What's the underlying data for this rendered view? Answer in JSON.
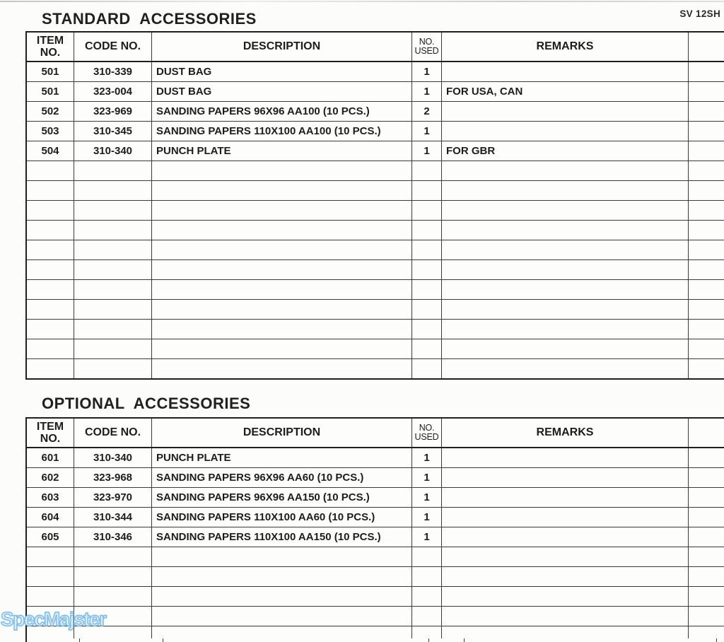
{
  "page": {
    "model_label": "SV 12SH",
    "watermark": "SpecMajster"
  },
  "tables": [
    {
      "id": "standard",
      "title": "STANDARD  ACCESSORIES",
      "columns": [
        {
          "key": "item",
          "label": "ITEM\nNO."
        },
        {
          "key": "code",
          "label": "CODE NO."
        },
        {
          "key": "description",
          "label": "DESCRIPTION"
        },
        {
          "key": "used",
          "label": "NO.\nUSED"
        },
        {
          "key": "remarks",
          "label": "REMARKS"
        },
        {
          "key": "extra",
          "label": ""
        }
      ],
      "rows": [
        {
          "star": "*",
          "item": "501",
          "code": "310-339",
          "description": "DUST BAG",
          "used": "1",
          "remarks": ""
        },
        {
          "star": "*",
          "item": "501",
          "code": "323-004",
          "description": "DUST BAG",
          "used": "1",
          "remarks": "FOR USA, CAN"
        },
        {
          "star": "",
          "item": "502",
          "code": "323-969",
          "description": "SANDING PAPERS 96X96 AA100 (10 PCS.)",
          "used": "2",
          "remarks": ""
        },
        {
          "star": "",
          "item": "503",
          "code": "310-345",
          "description": "SANDING PAPERS 110X100 AA100 (10 PCS.)",
          "used": "1",
          "remarks": ""
        },
        {
          "star": "*",
          "item": "504",
          "code": "310-340",
          "description": "PUNCH PLATE",
          "used": "1",
          "remarks": "FOR GBR"
        }
      ],
      "empty_row_count": 11
    },
    {
      "id": "optional",
      "title": "OPTIONAL  ACCESSORIES",
      "columns": [
        {
          "key": "item",
          "label": "ITEM\nNO."
        },
        {
          "key": "code",
          "label": "CODE NO."
        },
        {
          "key": "description",
          "label": "DESCRIPTION"
        },
        {
          "key": "used",
          "label": "NO.\nUSED"
        },
        {
          "key": "remarks",
          "label": "REMARKS"
        },
        {
          "key": "extra",
          "label": ""
        }
      ],
      "rows": [
        {
          "star": "",
          "item": "601",
          "code": "310-340",
          "description": "PUNCH PLATE",
          "used": "1",
          "remarks": ""
        },
        {
          "star": "",
          "item": "602",
          "code": "323-968",
          "description": "SANDING PAPERS 96X96 AA60 (10 PCS.)",
          "used": "1",
          "remarks": ""
        },
        {
          "star": "",
          "item": "603",
          "code": "323-970",
          "description": "SANDING PAPERS 96X96 AA150 (10 PCS.)",
          "used": "1",
          "remarks": ""
        },
        {
          "star": "",
          "item": "604",
          "code": "310-344",
          "description": "SANDING PAPERS 110X100 AA60 (10 PCS.)",
          "used": "1",
          "remarks": ""
        },
        {
          "star": "",
          "item": "605",
          "code": "310-346",
          "description": "SANDING PAPERS 110X100 AA150 (10 PCS.)",
          "used": "1",
          "remarks": ""
        }
      ],
      "empty_row_count": 5
    }
  ]
}
